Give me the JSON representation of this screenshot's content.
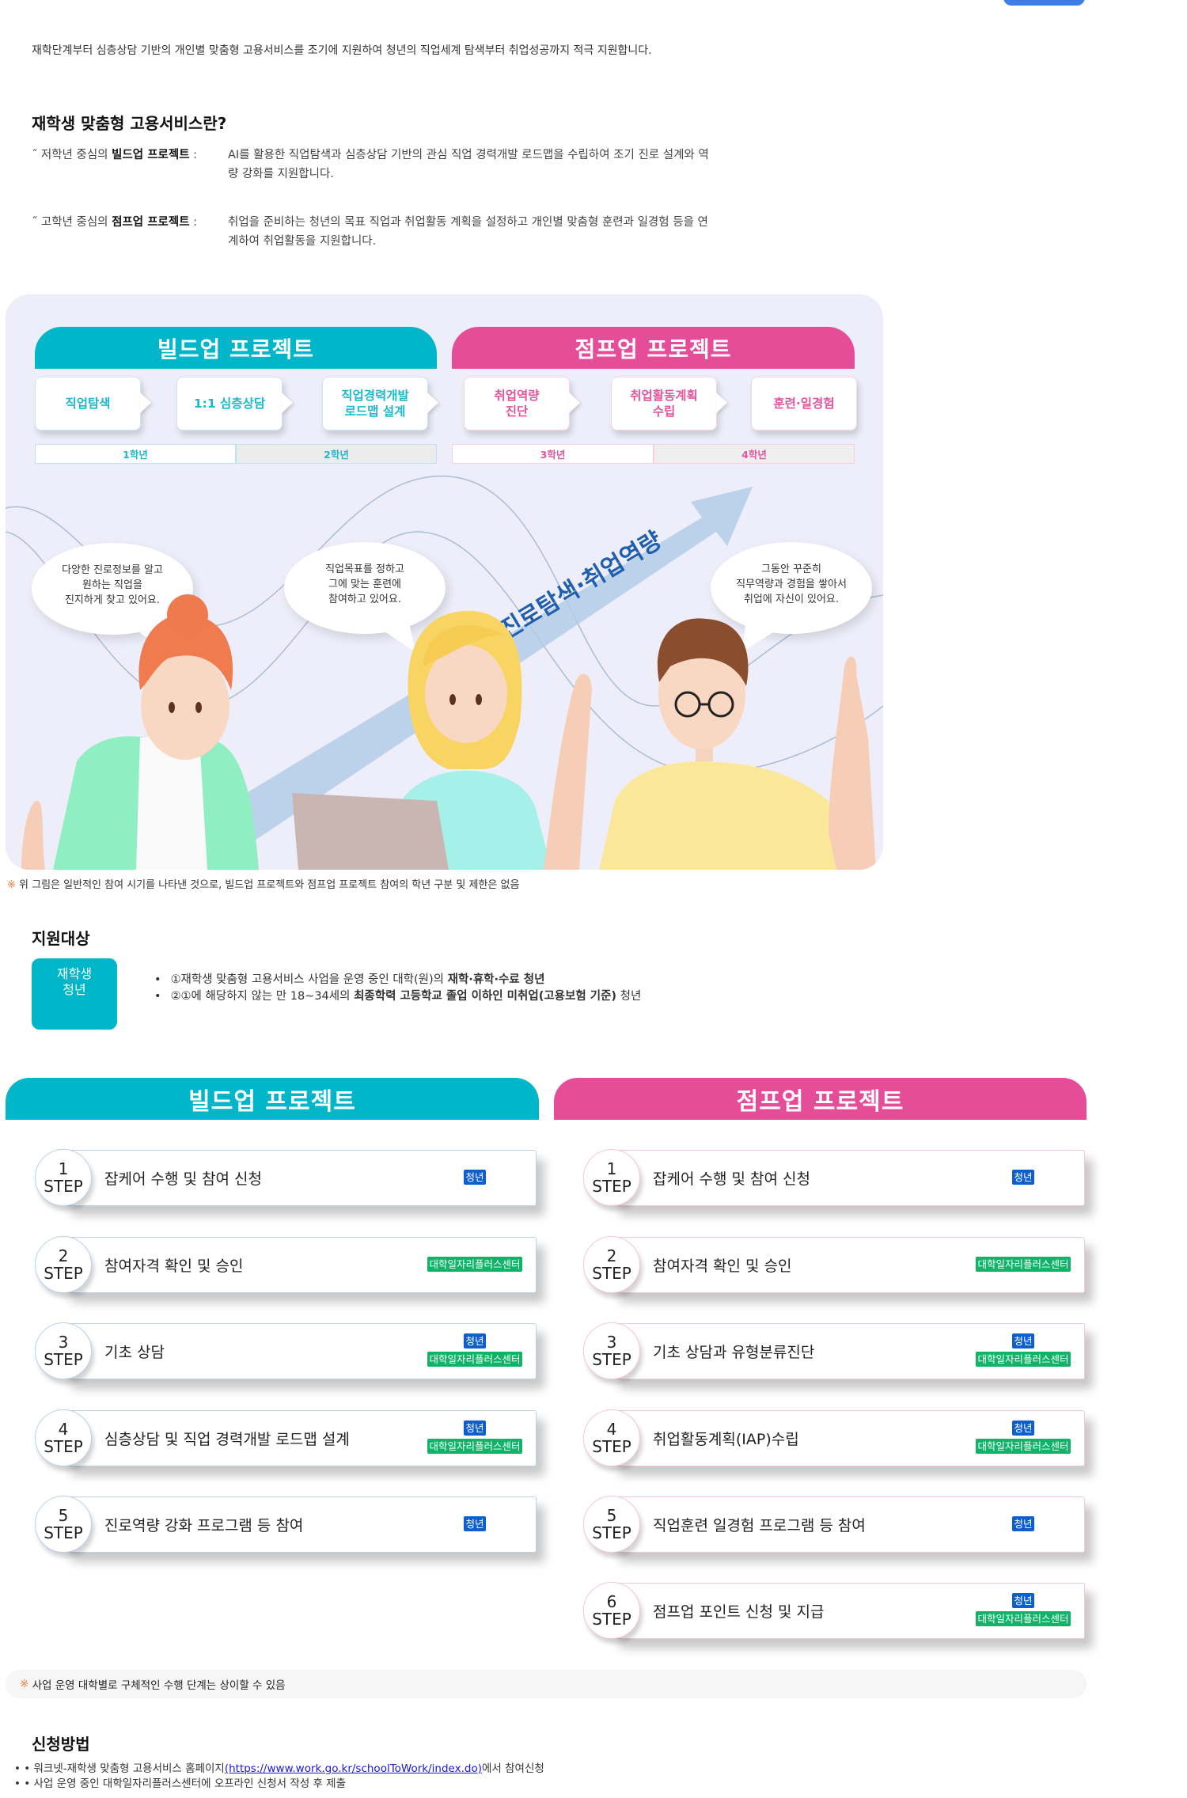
{
  "intro": "재학단계부터 심층상담 기반의 개인별 맞춤형 고용서비스를 조기에 지원하여 청년의 직업세계 탐색부터 취업성공까지 적극 지원합니다.",
  "about": {
    "title": "재학생 맞춤형 고용서비스란?",
    "items": [
      {
        "prefix": "저학년 중심의 ",
        "bold": "빌드업 프로젝트",
        "sep": " : ",
        "text": "AI를 활용한 직업탐색과 심층상담 기반의 관심 직업 경력개발 로드맵을 수립하여 조기 진로 설계와 역량 강화를 지원합니다."
      },
      {
        "prefix": "고학년 중심의 ",
        "bold": "점프업 프로젝트",
        "sep": " : ",
        "text": "취업을 준비하는 청년의 목표 직업과 취업활동 계획을 설정하고 개인별 맞춤형 훈련과 일경험 등을 연계하여 취업활동을 지원합니다."
      }
    ]
  },
  "figure": {
    "build_title": "빌드업 프로젝트",
    "jump_title": "점프업 프로젝트",
    "build_steps": [
      "직업탐색",
      "1:1 심층상담",
      "직업경력개발\n로드맵 설계"
    ],
    "jump_steps": [
      "취업역량\n진단",
      "취업활동계획\n수립",
      "훈련·일경험"
    ],
    "grades": [
      "1학년",
      "2학년",
      "3학년",
      "4학년"
    ],
    "arrow_text": "진로탐색·취업역량",
    "bubbles": [
      [
        "다양한 진로정보를 알고",
        "원하는 직업을",
        "진지하게 찾고 있어요."
      ],
      [
        "직업목표를 정하고",
        "그에 맞는 훈련에",
        "참여하고 있어요."
      ],
      [
        "그동안 꾸준히",
        "직무역량과 경험을 쌓아서",
        "취업에 자신이 있어요."
      ]
    ],
    "note_mark": "※",
    "note": "위 그림은 일반적인 참여 시기를 나타낸 것으로, 빌드업 프로젝트와 점프업 프로젝트 참여의 학년 구분 및 제한은 없음"
  },
  "target": {
    "title": "지원대상",
    "badge_line1": "재학생",
    "badge_line2": "청년",
    "items": [
      {
        "text": "①재학생 맞춤형 고용서비스 사업을 운영 중인 대학(원)의 ",
        "bold": "재학·휴학·수료 청년",
        "suffix": ""
      },
      {
        "text": "②①에 해당하지 않는 만 18~34세의 ",
        "bold": "최종학력 고등학교 졸업 이하인 미취업(고용보험 기준)",
        "suffix": " 청년"
      }
    ]
  },
  "steps": {
    "step_label": "STEP",
    "badge_youth": "청년",
    "badge_center": "대학일자리플러스센터",
    "build": {
      "title": "빌드업 프로젝트",
      "items": [
        {
          "num": "1",
          "title": "잡케어 수행 및 참여 신청",
          "badges": [
            "youth"
          ]
        },
        {
          "num": "2",
          "title": "참여자격 확인 및 승인",
          "badges": [
            "center"
          ]
        },
        {
          "num": "3",
          "title": "기초 상담",
          "badges": [
            "youth",
            "center"
          ]
        },
        {
          "num": "4",
          "title": "심층상담 및 직업 경력개발 로드맵 설계",
          "badges": [
            "youth",
            "center"
          ]
        },
        {
          "num": "5",
          "title": "진로역량 강화 프로그램 등 참여",
          "badges": [
            "youth"
          ]
        }
      ]
    },
    "jump": {
      "title": "점프업 프로젝트",
      "items": [
        {
          "num": "1",
          "title": "잡케어 수행 및 참여 신청",
          "badges": [
            "youth"
          ]
        },
        {
          "num": "2",
          "title": "참여자격 확인 및 승인",
          "badges": [
            "center"
          ]
        },
        {
          "num": "3",
          "title": "기초 상담과 유형분류진단",
          "badges": [
            "youth",
            "center"
          ]
        },
        {
          "num": "4",
          "title": "취업활동계획(IAP)수립",
          "badges": [
            "youth",
            "center"
          ]
        },
        {
          "num": "5",
          "title": "직업훈련 일경험 프로그램 등 참여",
          "badges": [
            "youth"
          ]
        },
        {
          "num": "6",
          "title": "점프업 포인트 신청 및 지급",
          "badges": [
            "youth",
            "center"
          ]
        }
      ]
    },
    "note_mark": "※",
    "note": "사업 운영 대학별로 구체적인 수행 단계는 상이할 수 있음"
  },
  "apply": {
    "title": "신청방법",
    "item1_prefix": "워크넷-재학생 맞춤형 고용서비스 홈페이지",
    "item1_link": "(https://www.work.go.kr/schoolToWork/index.do)",
    "item1_suffix": "에서 참여신청",
    "item2": "사업 운영 중인 대학일자리플러스센터에 오프라인 신청서 작성 후 제출"
  },
  "colors": {
    "build": "#00b6c8",
    "jump": "#e54d99",
    "youth_badge": "#0d5fcf",
    "center_badge": "#10b468"
  }
}
